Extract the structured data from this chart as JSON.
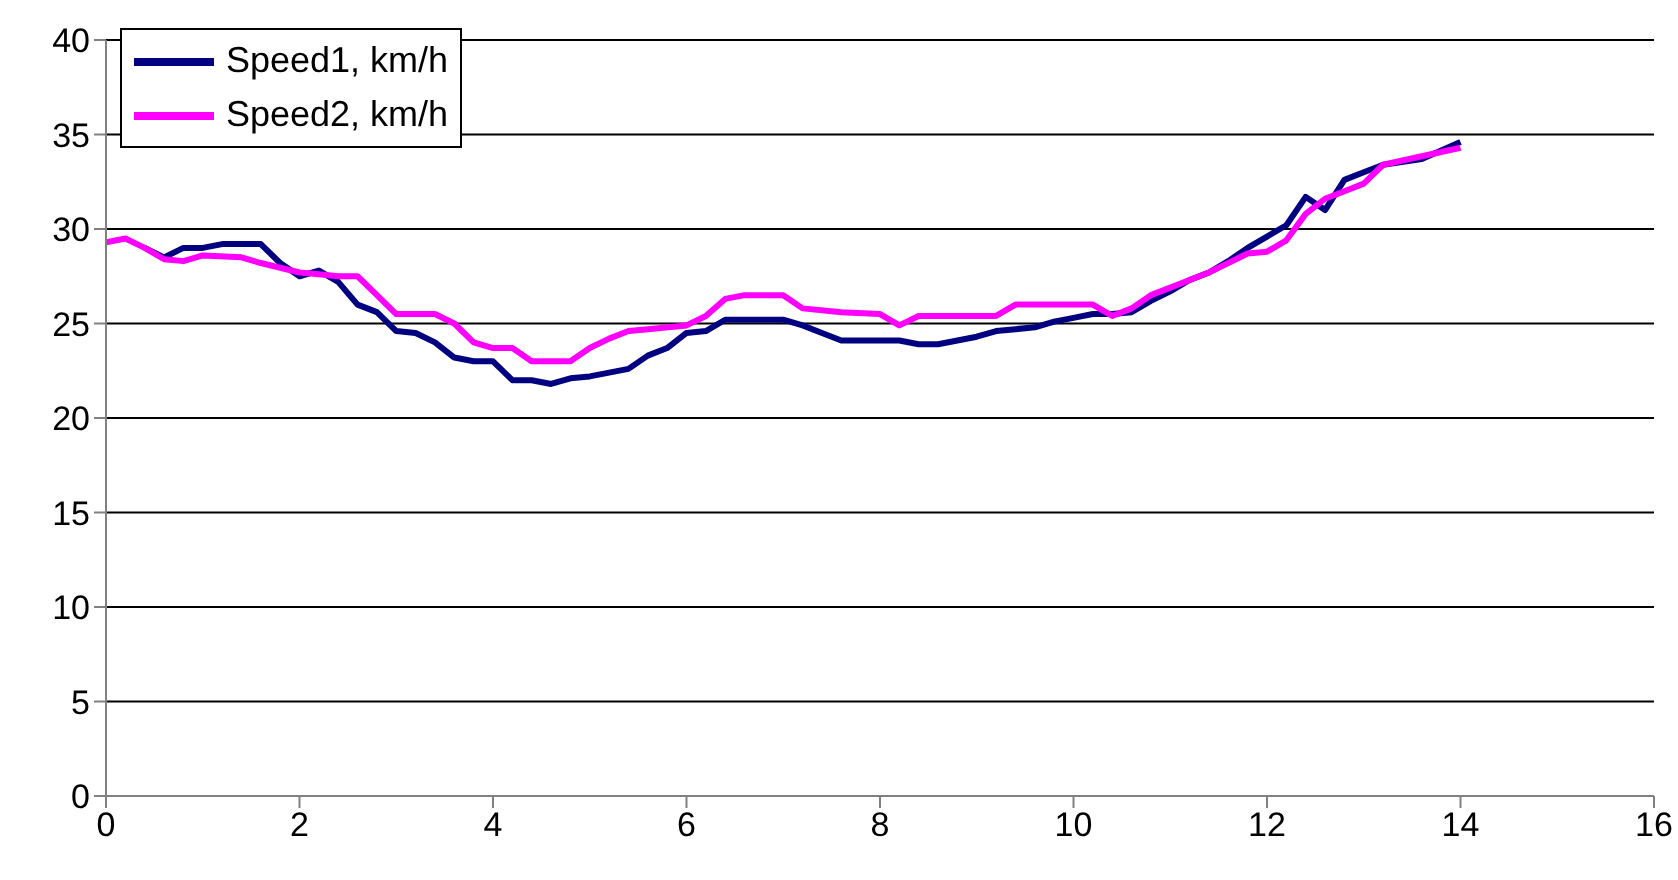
{
  "chart_data": {
    "type": "line",
    "xlim": [
      0,
      16
    ],
    "xticks": [
      0,
      2,
      4,
      6,
      8,
      10,
      12,
      14,
      16
    ],
    "ylim": [
      0,
      40
    ],
    "yticks": [
      0,
      5,
      10,
      15,
      20,
      25,
      30,
      35,
      40
    ],
    "grid": "y",
    "legend": "top left",
    "marker": "none",
    "line_style": "solid",
    "series": [
      {
        "name": "Speed1, km/h",
        "color": "#000080",
        "x": [
          0.4,
          0.6,
          0.8,
          1.0,
          1.2,
          1.4,
          1.6,
          1.8,
          2.0,
          2.2,
          2.4,
          2.6,
          2.8,
          3.0,
          3.2,
          3.4,
          3.6,
          3.8,
          4.0,
          4.2,
          4.4,
          4.6,
          4.8,
          5.0,
          5.2,
          5.4,
          5.6,
          5.8,
          6.0,
          6.2,
          6.4,
          6.6,
          7.0,
          7.2,
          7.4,
          7.6,
          7.8,
          8.0,
          8.2,
          8.4,
          8.6,
          8.8,
          9.0,
          9.2,
          9.4,
          9.6,
          9.8,
          10.0,
          10.2,
          10.4,
          10.6,
          10.8,
          11.0,
          11.2,
          11.4,
          11.6,
          11.8,
          12.0,
          12.2,
          12.4,
          12.6,
          12.8,
          13.0,
          13.2,
          13.6,
          14.0
        ],
        "values": [
          29.0,
          28.5,
          29.0,
          29.0,
          29.2,
          29.2,
          29.2,
          28.2,
          27.5,
          27.8,
          27.2,
          26.0,
          25.6,
          24.6,
          24.5,
          24.0,
          23.2,
          23.0,
          23.0,
          22.0,
          22.0,
          21.8,
          22.1,
          22.2,
          22.4,
          22.6,
          23.3,
          23.7,
          24.5,
          24.6,
          25.2,
          25.2,
          25.2,
          24.9,
          24.5,
          24.1,
          24.1,
          24.1,
          24.1,
          23.9,
          23.9,
          24.1,
          24.3,
          24.6,
          24.7,
          24.8,
          25.1,
          25.3,
          25.5,
          25.5,
          25.6,
          26.2,
          26.7,
          27.3,
          27.7,
          28.3,
          29.0,
          29.6,
          30.2,
          31.7,
          31.0,
          32.6,
          33.0,
          33.4,
          33.7,
          34.6
        ]
      },
      {
        "name": "Speed2, km/h",
        "color": "#ff00ff",
        "x": [
          0,
          0.2,
          0.4,
          0.6,
          0.8,
          1.0,
          1.4,
          1.6,
          2.0,
          2.2,
          2.4,
          2.6,
          2.8,
          3.0,
          3.4,
          3.6,
          3.8,
          4.0,
          4.2,
          4.4,
          4.8,
          5.0,
          5.2,
          5.4,
          5.6,
          6.0,
          6.2,
          6.4,
          6.6,
          7.0,
          7.2,
          7.6,
          8.0,
          8.2,
          8.4,
          9.0,
          9.2,
          9.4,
          10.0,
          10.2,
          10.4,
          10.6,
          10.8,
          11.0,
          11.4,
          11.6,
          11.8,
          12.0,
          12.2,
          12.4,
          12.6,
          12.8,
          13.0,
          13.2,
          14.0
        ],
        "values": [
          29.3,
          29.5,
          29.0,
          28.4,
          28.3,
          28.6,
          28.5,
          28.2,
          27.7,
          27.6,
          27.5,
          27.5,
          26.5,
          25.5,
          25.5,
          25.0,
          24.0,
          23.7,
          23.7,
          23.0,
          23.0,
          23.7,
          24.2,
          24.6,
          24.7,
          24.9,
          25.4,
          26.3,
          26.5,
          26.5,
          25.8,
          25.6,
          25.5,
          24.9,
          25.4,
          25.4,
          25.4,
          26.0,
          26.0,
          26.0,
          25.4,
          25.8,
          26.5,
          26.9,
          27.7,
          28.2,
          28.7,
          28.8,
          29.4,
          30.8,
          31.6,
          32.0,
          32.4,
          33.4,
          34.3
        ]
      }
    ]
  }
}
